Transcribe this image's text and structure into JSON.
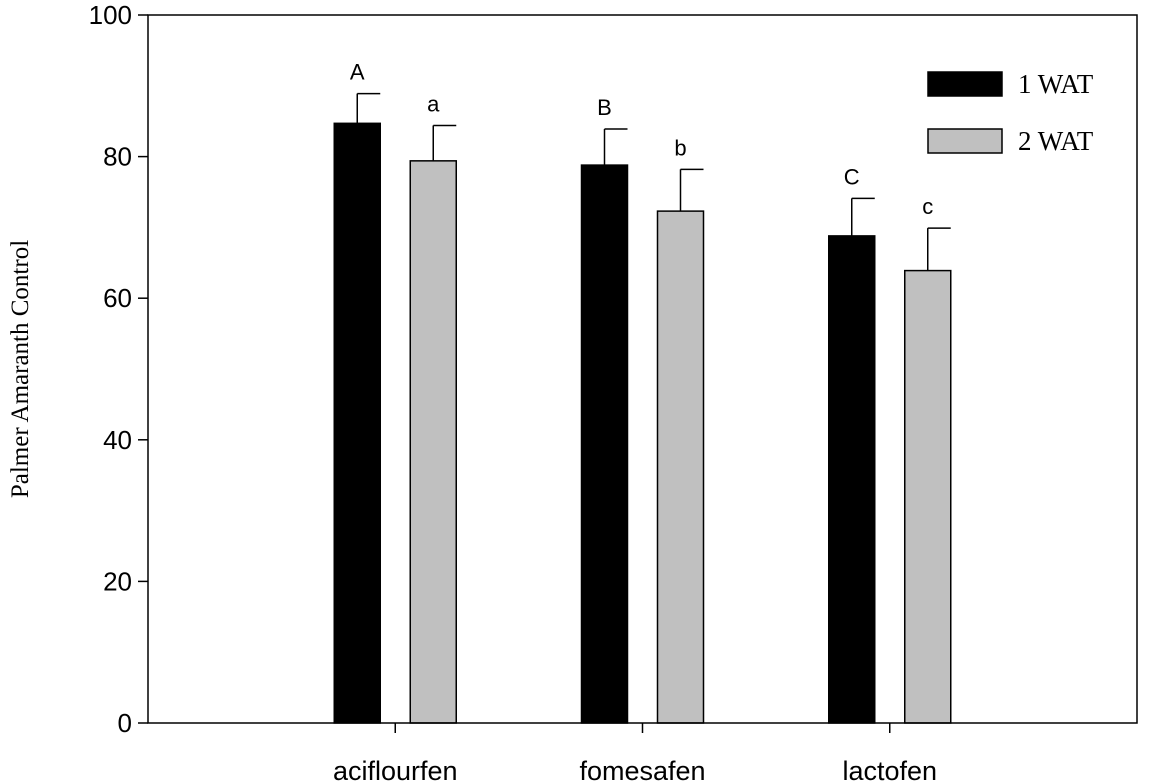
{
  "chart_data": {
    "type": "bar",
    "title": "",
    "xlabel": "",
    "ylabel": "Palmer Amaranth Control",
    "ylim": [
      0,
      100
    ],
    "yticks": [
      0,
      20,
      40,
      60,
      80,
      100
    ],
    "categories": [
      "aciflourfen",
      "fomesafen",
      "lactofen"
    ],
    "series": [
      {
        "name": "1 WAT",
        "color": "#000000",
        "values": [
          84.7,
          78.8,
          68.8
        ],
        "errors": [
          4.2,
          5.1,
          5.3
        ],
        "letters": [
          "A",
          "B",
          "C"
        ]
      },
      {
        "name": "2 WAT",
        "color": "#c0c0c0",
        "values": [
          79.4,
          72.3,
          63.9
        ],
        "errors": [
          5.0,
          5.9,
          6.0
        ],
        "letters": [
          "a",
          "b",
          "c"
        ]
      }
    ],
    "legend_position": "top-right",
    "grid": false
  }
}
